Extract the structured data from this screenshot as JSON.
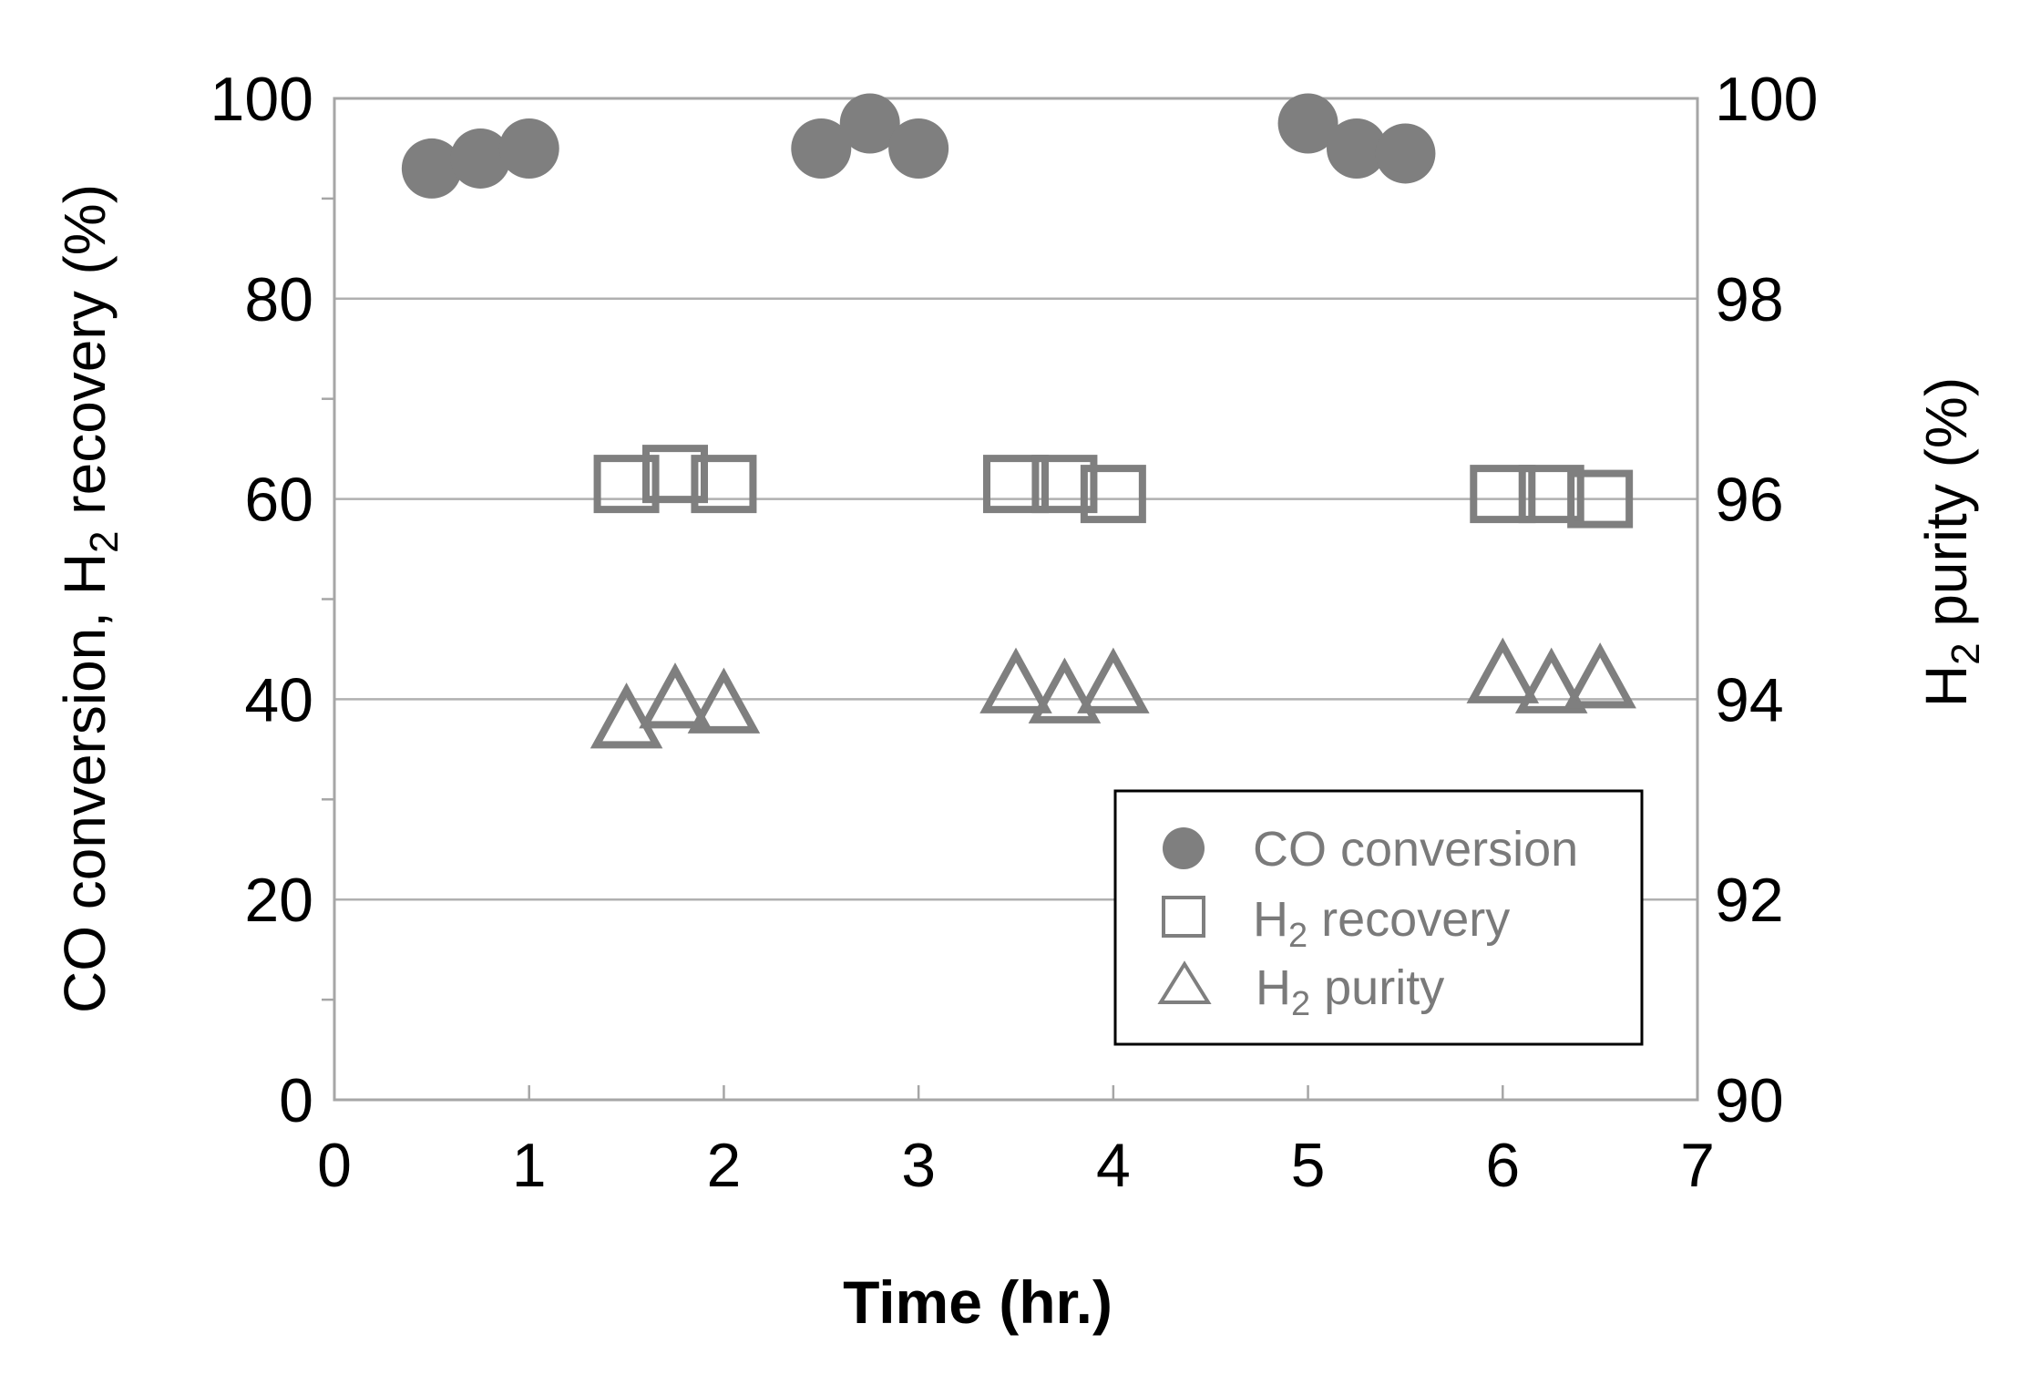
{
  "chart_data": {
    "type": "scatter",
    "xlabel": "Time (hr.)",
    "ylabel_left": {
      "main": "CO conversion, H",
      "sub": "2",
      "tail": " recovery (%)"
    },
    "ylabel_right": {
      "main": "H",
      "sub": "2",
      "tail": " purity (%)"
    },
    "xlim": [
      0,
      7
    ],
    "ylim_left": [
      0,
      100
    ],
    "ylim_right": [
      90,
      100
    ],
    "x_ticks": [
      "0",
      "1",
      "2",
      "3",
      "4",
      "5",
      "6",
      "7"
    ],
    "y_left_ticks": [
      "0",
      "20",
      "40",
      "60",
      "80",
      "100"
    ],
    "y_right_ticks": [
      "90",
      "92",
      "94",
      "96",
      "98",
      "100"
    ],
    "grid": true,
    "legend_position": "bottom-right",
    "colors": {
      "marker": "#7f7f7f",
      "grid": "#b0b0b0"
    },
    "series": [
      {
        "name": "CO conversion",
        "legend_main": "CO conversion",
        "legend_sub": "",
        "legend_tail": "",
        "marker": "circle",
        "axis": "left",
        "x": [
          0.5,
          0.75,
          1.0,
          2.5,
          2.75,
          3.0,
          5.0,
          5.25,
          5.5
        ],
        "values": [
          93,
          94,
          95,
          95,
          97.5,
          95,
          97.5,
          95,
          94.5
        ]
      },
      {
        "name": "H2 recovery",
        "legend_main": "H",
        "legend_sub": "2",
        "legend_tail": " recovery",
        "marker": "square",
        "axis": "left",
        "x": [
          1.5,
          1.75,
          2.0,
          3.5,
          3.75,
          4.0,
          6.0,
          6.25,
          6.5
        ],
        "values": [
          61.5,
          62.5,
          61.5,
          61.5,
          61.5,
          60.5,
          60.5,
          60.5,
          60
        ]
      },
      {
        "name": "H2 purity",
        "legend_main": "H",
        "legend_sub": "2",
        "legend_tail": " purity",
        "marker": "triangle",
        "axis": "right",
        "x": [
          1.5,
          1.75,
          2.0,
          3.5,
          3.75,
          4.0,
          6.0,
          6.25,
          6.5
        ],
        "values": [
          93.8,
          94.0,
          93.95,
          94.15,
          94.05,
          94.15,
          94.25,
          94.15,
          94.2
        ]
      }
    ]
  }
}
